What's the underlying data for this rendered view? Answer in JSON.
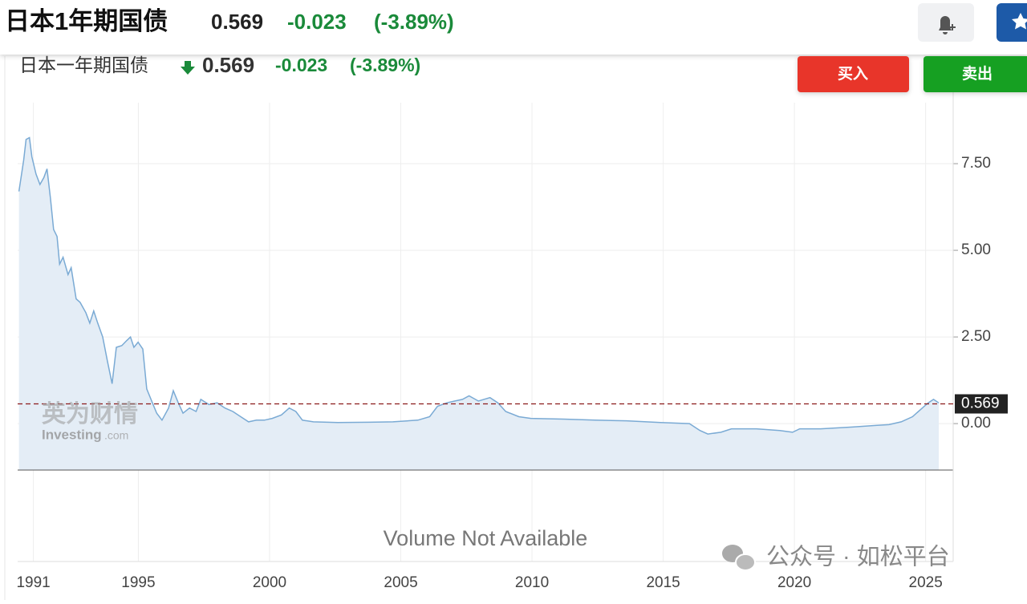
{
  "header": {
    "title": "日本1年期国债",
    "price": "0.569",
    "change": "-0.023",
    "change_pct": "(-3.89%)"
  },
  "panel": {
    "title": "日本一年期国债",
    "price": "0.569",
    "change": "-0.023",
    "change_pct": "(-3.89%)",
    "buy": "买入",
    "sell": "卖出",
    "volume_note": "Volume Not Available",
    "watermark_cn": "英为财情",
    "watermark_en": "Investing",
    "watermark_suffix": ".com",
    "source": "公众号 · 如松平台"
  },
  "chart_data": {
    "type": "area",
    "color": "#7aaad4",
    "fill": "#e4edf6",
    "grid": true,
    "x": [
      1990.45,
      1990.63,
      1990.72,
      1990.85,
      1990.94,
      1991.1,
      1991.25,
      1991.4,
      1991.52,
      1991.65,
      1991.77,
      1991.9,
      1992.0,
      1992.13,
      1992.32,
      1992.44,
      1992.63,
      1992.78,
      1993.0,
      1993.15,
      1993.3,
      1993.45,
      1993.64,
      1993.82,
      1994.0,
      1994.16,
      1994.37,
      1994.56,
      1994.7,
      1994.83,
      1994.99,
      1995.17,
      1995.32,
      1995.48,
      1995.7,
      1995.9,
      1996.15,
      1996.33,
      1996.52,
      1996.7,
      1996.95,
      1997.2,
      1997.38,
      1997.69,
      1998.0,
      1998.3,
      1998.6,
      1998.9,
      1999.2,
      1999.5,
      1999.8,
      2000.1,
      2000.45,
      2000.75,
      2001.0,
      2001.25,
      2001.67,
      2002.6,
      2003.8,
      2004.7,
      2005.65,
      2006.1,
      2006.4,
      2006.75,
      2007.05,
      2007.35,
      2007.6,
      2007.96,
      2008.4,
      2008.7,
      2009.0,
      2009.5,
      2009.96,
      2011.2,
      2012.4,
      2013.6,
      2014.9,
      2016.0,
      2016.4,
      2016.7,
      2017.2,
      2017.6,
      2018.55,
      2019.45,
      2019.93,
      2020.2,
      2021.0,
      2022.2,
      2023.15,
      2023.6,
      2024.07,
      2024.5,
      2024.8,
      2025.1,
      2025.3,
      2025.5
    ],
    "values": [
      6.7,
      7.6,
      8.2,
      8.25,
      7.7,
      7.2,
      6.9,
      7.1,
      7.35,
      6.5,
      5.6,
      5.4,
      4.6,
      4.8,
      4.3,
      4.5,
      3.6,
      3.5,
      3.2,
      2.9,
      3.25,
      2.9,
      2.5,
      1.8,
      1.15,
      2.2,
      2.25,
      2.4,
      2.5,
      2.2,
      2.35,
      2.15,
      1.0,
      0.7,
      0.3,
      0.1,
      0.45,
      0.95,
      0.6,
      0.3,
      0.45,
      0.35,
      0.7,
      0.55,
      0.6,
      0.45,
      0.35,
      0.2,
      0.05,
      0.1,
      0.1,
      0.15,
      0.25,
      0.45,
      0.35,
      0.1,
      0.05,
      0.03,
      0.04,
      0.05,
      0.1,
      0.2,
      0.5,
      0.6,
      0.65,
      0.7,
      0.8,
      0.65,
      0.75,
      0.6,
      0.35,
      0.2,
      0.15,
      0.13,
      0.1,
      0.08,
      0.03,
      0.0,
      -0.2,
      -0.3,
      -0.25,
      -0.15,
      -0.15,
      -0.2,
      -0.25,
      -0.15,
      -0.15,
      -0.1,
      -0.05,
      -0.03,
      0.05,
      0.2,
      0.4,
      0.6,
      0.7,
      0.6
    ],
    "xlim": [
      1990.4,
      2026.05
    ],
    "ylim": [
      -1.34,
      9.26
    ],
    "xticks": [
      1991,
      1995,
      2000,
      2005,
      2010,
      2015,
      2020,
      2025
    ],
    "yticks": [
      {
        "value": 0,
        "label": "0.00"
      },
      {
        "value": 2.5,
        "label": "2.50"
      },
      {
        "value": 5,
        "label": "5.00"
      },
      {
        "value": 7.5,
        "label": "7.50"
      }
    ],
    "reference_value": 0.569
  }
}
